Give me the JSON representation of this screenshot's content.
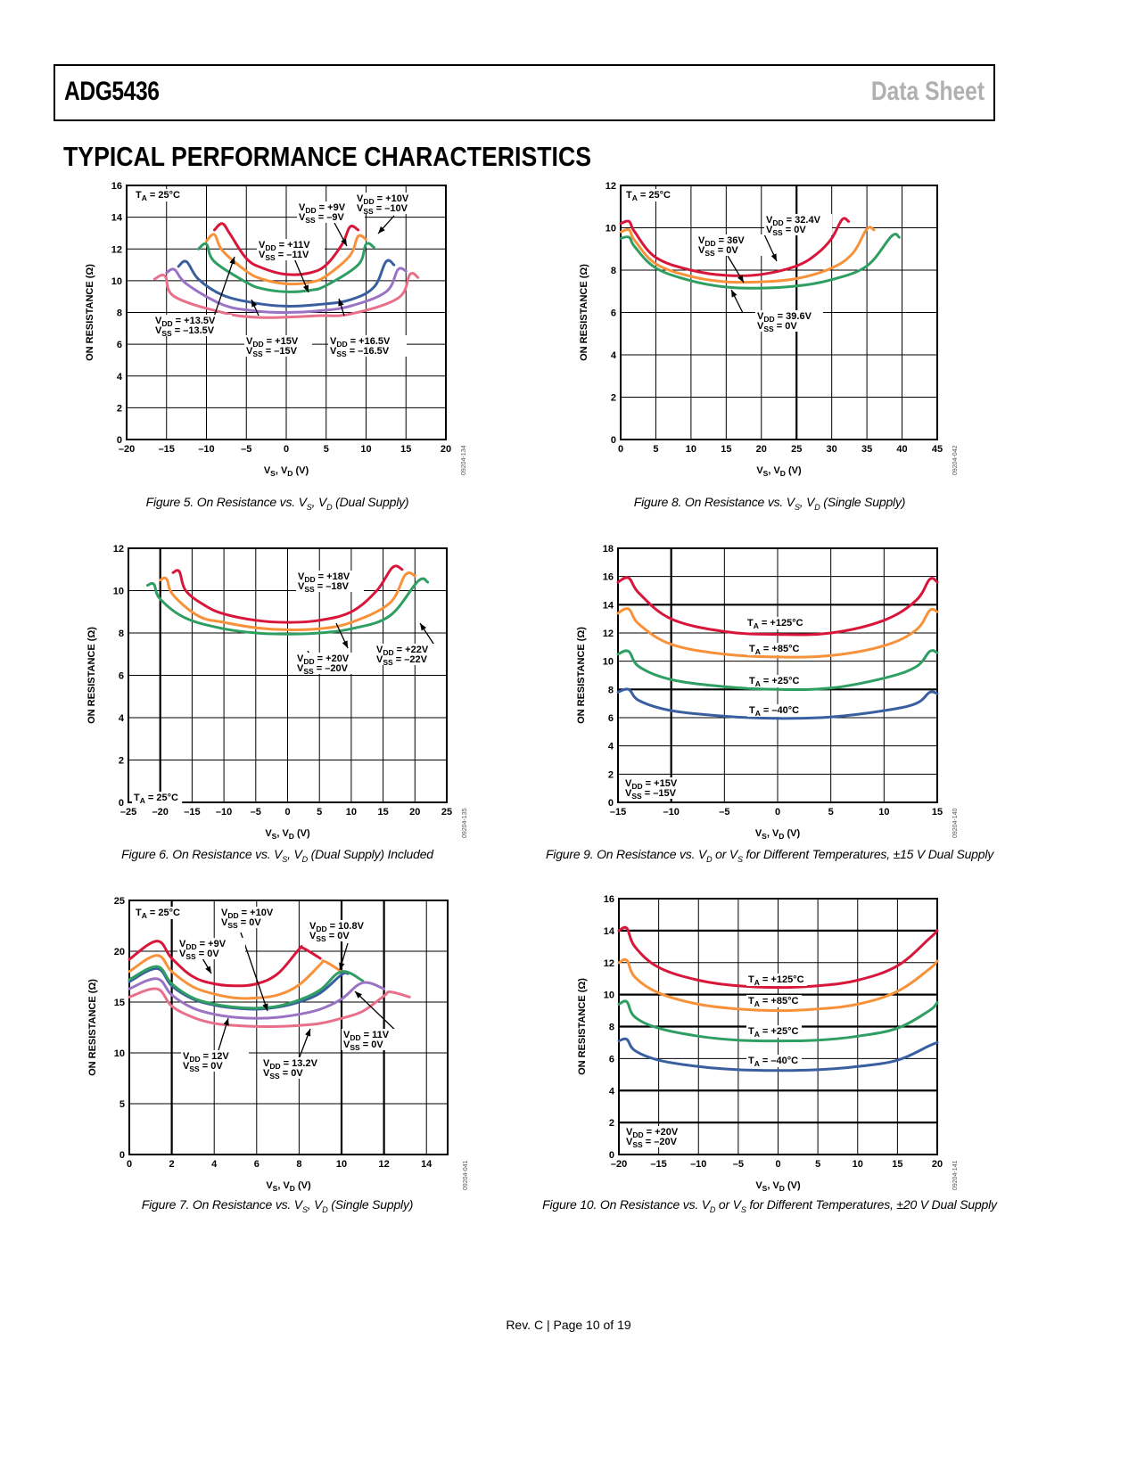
{
  "header": {
    "part_number": "ADG5436",
    "doc_type": "Data Sheet"
  },
  "section_title": "TYPICAL PERFORMANCE CHARACTERISTICS",
  "footer": "Rev. C | Page 10 of 19",
  "colors": {
    "red": "#d7163a",
    "orange": "#f7923a",
    "green": "#2e9e62",
    "blue": "#3a5fa0",
    "purple": "#9a73c4",
    "pink": "#e8708a"
  },
  "chart_data": [
    {
      "id": "fig5",
      "type": "line",
      "caption": "Figure 5. On Resistance vs. VS, VD (Dual Supply)",
      "fig_code": "09204-134",
      "xlabel": "VS, VD (V)",
      "ylabel": "ON RESISTANCE (Ω)",
      "xlim": [
        -20,
        20
      ],
      "ylim": [
        0,
        16
      ],
      "xticks": [
        -20,
        -15,
        -10,
        -5,
        0,
        5,
        10,
        15,
        20
      ],
      "yticks": [
        0,
        2,
        4,
        6,
        8,
        10,
        12,
        14,
        16
      ],
      "grid": true,
      "annotations": [
        "TA = 25°C",
        "VDD = +9V VSS = –9V",
        "VDD = +10V VSS = –10V",
        "VDD = +11V VSS = –11V",
        "VDD = +13.5V VSS = –13.5V",
        "VDD = +15V VSS = –15V",
        "VDD = +16.5V VSS = –16.5V"
      ],
      "series": [
        {
          "name": "VDD = +9V, VSS = -9V",
          "color": "red",
          "x": [
            -9,
            -8,
            -7,
            -5,
            -3,
            0,
            3,
            5,
            7,
            8,
            9
          ],
          "y": [
            13.2,
            13.6,
            12.9,
            11.4,
            10.8,
            10.4,
            10.5,
            11.0,
            12.3,
            13.4,
            13.2
          ]
        },
        {
          "name": "VDD = +10V, VSS = -10V",
          "color": "orange",
          "x": [
            -10,
            -9,
            -8,
            -5,
            -3,
            0,
            3,
            5,
            8,
            9,
            10
          ],
          "y": [
            12.5,
            12.9,
            11.9,
            10.6,
            10.1,
            9.8,
            9.9,
            10.3,
            11.6,
            12.8,
            12.6
          ]
        },
        {
          "name": "VDD = +11V, VSS = -11V",
          "color": "green",
          "x": [
            -11,
            -10,
            -9,
            -5,
            -3,
            0,
            3,
            5,
            9,
            10,
            11
          ],
          "y": [
            12.0,
            12.3,
            11.2,
            9.9,
            9.5,
            9.3,
            9.4,
            9.7,
            11.0,
            12.3,
            12.1
          ]
        },
        {
          "name": "VDD = +13.5V, VSS = -13.5V",
          "color": "blue",
          "x": [
            -13.5,
            -12.5,
            -11,
            -8,
            -4,
            0,
            4,
            8,
            11,
            12.5,
            13.5
          ],
          "y": [
            10.9,
            11.2,
            10.1,
            9.1,
            8.6,
            8.4,
            8.5,
            8.8,
            9.6,
            11.2,
            11.0
          ]
        },
        {
          "name": "VDD = +15V, VSS = -15V",
          "color": "purple",
          "x": [
            -15,
            -14,
            -12.5,
            -8,
            -4,
            0,
            4,
            8,
            12.5,
            14,
            15
          ],
          "y": [
            10.5,
            10.7,
            9.8,
            8.5,
            8.1,
            8.0,
            8.1,
            8.4,
            9.3,
            10.7,
            10.6
          ]
        },
        {
          "name": "VDD = +16.5V, VSS = -16.5V",
          "color": "pink",
          "x": [
            -16.5,
            -15.2,
            -14,
            -8,
            -4,
            0,
            4,
            8,
            14,
            15.5,
            16.5
          ],
          "y": [
            10.1,
            10.3,
            9.0,
            8.0,
            7.7,
            7.7,
            7.8,
            7.9,
            8.9,
            10.4,
            10.2
          ]
        }
      ]
    },
    {
      "id": "fig8",
      "type": "line",
      "caption": "Figure 8. On Resistance vs. VS, VD (Single Supply)",
      "fig_code": "09204-042",
      "xlabel": "VS, VD (V)",
      "ylabel": "ON RESISTANCE (Ω)",
      "xlim": [
        0,
        45
      ],
      "ylim": [
        0,
        12
      ],
      "xticks": [
        0,
        5,
        10,
        15,
        20,
        25,
        30,
        35,
        40,
        45
      ],
      "yticks": [
        0,
        2,
        4,
        6,
        8,
        10,
        12
      ],
      "grid": true,
      "annotations": [
        "TA = 25°C",
        "VDD = 32.4V VSS = 0V",
        "VDD = 36V VSS = 0V",
        "VDD = 39.6V VSS = 0V"
      ],
      "series": [
        {
          "name": "VDD = 32.4V, VSS = 0V",
          "color": "red",
          "x": [
            0,
            1.2,
            2,
            5,
            10,
            15,
            20,
            25,
            28,
            30,
            31.5,
            32.4
          ],
          "y": [
            10.2,
            10.3,
            9.8,
            8.6,
            8.0,
            7.75,
            7.8,
            8.2,
            8.8,
            9.5,
            10.4,
            10.3
          ]
        },
        {
          "name": "VDD = 36V, VSS = 0V",
          "color": "orange",
          "x": [
            0,
            1.2,
            2,
            5,
            10,
            15,
            20,
            25,
            30,
            33,
            35,
            36
          ],
          "y": [
            9.8,
            9.9,
            9.4,
            8.3,
            7.7,
            7.45,
            7.45,
            7.6,
            8.1,
            8.8,
            9.95,
            9.9
          ]
        },
        {
          "name": "VDD = 39.6V, VSS = 0V",
          "color": "green",
          "x": [
            0,
            1.2,
            2,
            5,
            10,
            15,
            20,
            25,
            30,
            35,
            38.5,
            39.6
          ],
          "y": [
            9.5,
            9.55,
            9.1,
            8.1,
            7.5,
            7.2,
            7.15,
            7.25,
            7.55,
            8.2,
            9.6,
            9.55
          ]
        }
      ]
    },
    {
      "id": "fig6",
      "type": "line",
      "caption": "Figure 6. On Resistance vs. VS, VD (Dual Supply) Included",
      "fig_code": "09204-135",
      "xlabel": "VS, VD (V)",
      "ylabel": "ON RESISTANCE (Ω)",
      "xlim": [
        -25,
        25
      ],
      "ylim": [
        0,
        12
      ],
      "xticks": [
        -25,
        -20,
        -15,
        -10,
        -5,
        0,
        5,
        10,
        15,
        20,
        25
      ],
      "yticks": [
        0,
        2,
        4,
        6,
        8,
        10,
        12
      ],
      "grid": true,
      "annotations": [
        "TA = 25°C",
        "VDD = +18V VSS = –18V",
        "VDD = +20V VSS = –20V",
        "VDD = +22V VSS = –22V"
      ],
      "series": [
        {
          "name": "VDD = +18V, VSS = -18V",
          "color": "red",
          "x": [
            -18,
            -17,
            -16,
            -13,
            -10,
            -5,
            0,
            5,
            10,
            14,
            16.5,
            18
          ],
          "y": [
            10.85,
            10.9,
            10.0,
            9.3,
            8.9,
            8.6,
            8.5,
            8.6,
            9.0,
            10.0,
            11.1,
            11.0
          ]
        },
        {
          "name": "VDD = +20V, VSS = -20V",
          "color": "orange",
          "x": [
            -20,
            -19,
            -18,
            -14,
            -10,
            -5,
            0,
            5,
            10,
            16,
            18.5,
            20
          ],
          "y": [
            10.5,
            10.55,
            9.8,
            8.8,
            8.5,
            8.25,
            8.15,
            8.2,
            8.5,
            9.4,
            10.75,
            10.7
          ]
        },
        {
          "name": "VDD = +22V, VSS = -22V",
          "color": "green",
          "x": [
            -22,
            -21,
            -20,
            -16,
            -10,
            -5,
            0,
            5,
            10,
            16,
            20.5,
            22
          ],
          "y": [
            10.25,
            10.3,
            9.6,
            8.7,
            8.2,
            8.0,
            7.95,
            8.0,
            8.2,
            8.8,
            10.45,
            10.4
          ]
        }
      ]
    },
    {
      "id": "fig9",
      "type": "line",
      "caption": "Figure 9. On Resistance vs. VD or VS for Different Temperatures, ±15 V Dual Supply",
      "fig_code": "09204-140",
      "xlabel": "VS, VD (V)",
      "ylabel": "ON RESISTANCE (Ω)",
      "xlim": [
        -15,
        15
      ],
      "ylim": [
        0,
        18
      ],
      "xticks": [
        -15,
        -10,
        -5,
        0,
        5,
        10,
        15
      ],
      "yticks": [
        0,
        2,
        4,
        6,
        8,
        10,
        12,
        14,
        16,
        18
      ],
      "grid": true,
      "annotations": [
        "VDD = +15V VSS = –15V",
        "TA = +125°C",
        "TA = +85°C",
        "TA = +25°C",
        "TA = –40°C"
      ],
      "series": [
        {
          "name": "TA = +125°C",
          "color": "red",
          "x": [
            -15,
            -14,
            -13,
            -10,
            -5,
            0,
            5,
            10,
            13,
            14.3,
            15
          ],
          "y": [
            15.6,
            15.9,
            14.8,
            13.0,
            12.1,
            11.9,
            12.0,
            12.9,
            14.3,
            15.8,
            15.6
          ]
        },
        {
          "name": "TA = +85°C",
          "color": "orange",
          "x": [
            -15,
            -14,
            -13,
            -10,
            -5,
            0,
            5,
            10,
            13,
            14.3,
            15
          ],
          "y": [
            13.4,
            13.7,
            12.6,
            11.2,
            10.5,
            10.3,
            10.4,
            11.1,
            12.2,
            13.6,
            13.5
          ]
        },
        {
          "name": "TA = +25°C",
          "color": "green",
          "x": [
            -15,
            -14,
            -13,
            -10,
            -5,
            0,
            5,
            10,
            13,
            14.3,
            15
          ],
          "y": [
            10.5,
            10.7,
            9.6,
            8.7,
            8.2,
            8.0,
            8.1,
            8.8,
            9.6,
            10.7,
            10.6
          ]
        },
        {
          "name": "TA = -40°C",
          "color": "blue",
          "x": [
            -15,
            -14,
            -13,
            -10,
            -5,
            0,
            5,
            10,
            13,
            14.3,
            15
          ],
          "y": [
            7.8,
            8.0,
            7.2,
            6.5,
            6.1,
            5.95,
            6.05,
            6.5,
            7.0,
            7.8,
            7.7
          ]
        }
      ]
    },
    {
      "id": "fig7",
      "type": "line",
      "caption": "Figure 7. On Resistance vs. VS, VD (Single Supply)",
      "fig_code": "09204-041",
      "xlabel": "VS, VD (V)",
      "ylabel": "ON RESISTANCE (Ω)",
      "xlim": [
        0,
        15
      ],
      "ylim": [
        0,
        25
      ],
      "xticks": [
        0,
        2,
        4,
        6,
        8,
        10,
        12,
        14
      ],
      "yticks": [
        0,
        5,
        10,
        15,
        20,
        25
      ],
      "grid": true,
      "annotations": [
        "TA = 25°C",
        "VDD = +10V VSS = 0V",
        "VDD = +9V VSS = 0V",
        "VDD = 10.8V VSS = 0V",
        "VDD = 11V VSS = 0V",
        "VDD = 12V VSS = 0V",
        "VDD = 13.2V VSS = 0V"
      ],
      "series": [
        {
          "name": "VDD = +9V, VSS = 0V",
          "color": "red",
          "x": [
            0,
            1.3,
            2,
            3,
            4,
            5,
            6,
            7,
            8,
            8.2,
            9
          ],
          "y": [
            19.2,
            21.0,
            19.3,
            17.5,
            16.8,
            16.6,
            16.8,
            17.8,
            20.2,
            20.3,
            19.3
          ]
        },
        {
          "name": "VDD = +10V, VSS = 0V",
          "color": "orange",
          "x": [
            0,
            1.3,
            2,
            3,
            4,
            5,
            6,
            7,
            8,
            9,
            9.2,
            10
          ],
          "y": [
            18.0,
            19.6,
            18.0,
            16.5,
            15.8,
            15.4,
            15.4,
            15.7,
            16.7,
            18.7,
            19.0,
            18.0
          ]
        },
        {
          "name": "VDD = 10.8V, VSS = 0V",
          "color": "blue",
          "x": [
            0,
            1.3,
            2,
            3,
            4,
            5,
            6,
            7,
            8,
            9,
            10,
            10.3
          ],
          "y": [
            17.0,
            18.3,
            16.6,
            15.3,
            14.7,
            14.4,
            14.3,
            14.5,
            15.0,
            15.9,
            17.7,
            17.8
          ]
        },
        {
          "name": "VDD = 11V, VSS = 0V",
          "color": "green",
          "x": [
            0,
            1.3,
            2,
            3,
            4,
            5,
            6,
            7,
            8,
            9,
            10,
            11
          ],
          "y": [
            17.2,
            18.5,
            16.8,
            15.4,
            14.8,
            14.5,
            14.4,
            14.6,
            15.2,
            16.2,
            18.0,
            17.1
          ]
        },
        {
          "name": "VDD = 12V, VSS = 0V",
          "color": "purple",
          "x": [
            0,
            1.3,
            2,
            3,
            4,
            5,
            6,
            7,
            8,
            9,
            10,
            11,
            12
          ],
          "y": [
            16.3,
            17.3,
            15.7,
            14.4,
            13.8,
            13.5,
            13.4,
            13.5,
            13.8,
            14.3,
            15.3,
            16.9,
            16.3
          ]
        },
        {
          "name": "VDD = 13.2V, VSS = 0V",
          "color": "pink",
          "x": [
            0,
            1.3,
            2,
            3,
            4,
            5,
            6,
            7,
            8,
            9,
            10,
            11,
            12,
            12.3,
            13.2
          ],
          "y": [
            15.5,
            16.3,
            14.6,
            13.5,
            12.9,
            12.7,
            12.6,
            12.6,
            12.7,
            12.9,
            13.4,
            14.1,
            15.6,
            16.0,
            15.5
          ]
        }
      ]
    },
    {
      "id": "fig10",
      "type": "line",
      "caption": "Figure 10. On Resistance vs. VD or VS for Different Temperatures, ±20 V Dual Supply",
      "fig_code": "09204-141",
      "xlabel": "VS, VD (V)",
      "ylabel": "ON RESISTANCE (Ω)",
      "xlim": [
        -20,
        20
      ],
      "ylim": [
        0,
        16
      ],
      "xticks": [
        -20,
        -15,
        -10,
        -5,
        0,
        5,
        10,
        15,
        20
      ],
      "yticks": [
        0,
        2,
        4,
        6,
        8,
        10,
        12,
        14,
        16
      ],
      "grid": true,
      "annotations": [
        "VDD = +20V VSS = –20V",
        "TA = +125°C",
        "TA = +85°C",
        "TA = +25°C",
        "TA = –40°C"
      ],
      "series": [
        {
          "name": "TA = +125°C",
          "color": "red",
          "x": [
            -20,
            -19,
            -18,
            -15,
            -10,
            -5,
            0,
            5,
            10,
            15,
            19,
            20
          ],
          "y": [
            14.0,
            14.15,
            13.0,
            11.7,
            10.9,
            10.55,
            10.45,
            10.55,
            10.9,
            11.8,
            13.5,
            14.0
          ]
        },
        {
          "name": "TA = +85°C",
          "color": "orange",
          "x": [
            -20,
            -19,
            -18,
            -15,
            -10,
            -5,
            0,
            5,
            10,
            15,
            19,
            20
          ],
          "y": [
            12.0,
            12.15,
            11.1,
            10.1,
            9.4,
            9.1,
            9.0,
            9.1,
            9.4,
            10.2,
            11.6,
            12.1
          ]
        },
        {
          "name": "TA = +25°C",
          "color": "green",
          "x": [
            -20,
            -19,
            -18,
            -15,
            -10,
            -5,
            0,
            5,
            10,
            15,
            19,
            20
          ],
          "y": [
            9.4,
            9.55,
            8.6,
            7.9,
            7.4,
            7.15,
            7.1,
            7.15,
            7.4,
            7.9,
            9.0,
            9.5
          ]
        },
        {
          "name": "TA = -40°C",
          "color": "blue",
          "x": [
            -20,
            -19,
            -18,
            -15,
            -10,
            -5,
            0,
            5,
            10,
            15,
            19,
            20
          ],
          "y": [
            7.1,
            7.2,
            6.5,
            5.9,
            5.5,
            5.3,
            5.25,
            5.3,
            5.5,
            5.9,
            6.8,
            7.0
          ]
        }
      ]
    }
  ]
}
